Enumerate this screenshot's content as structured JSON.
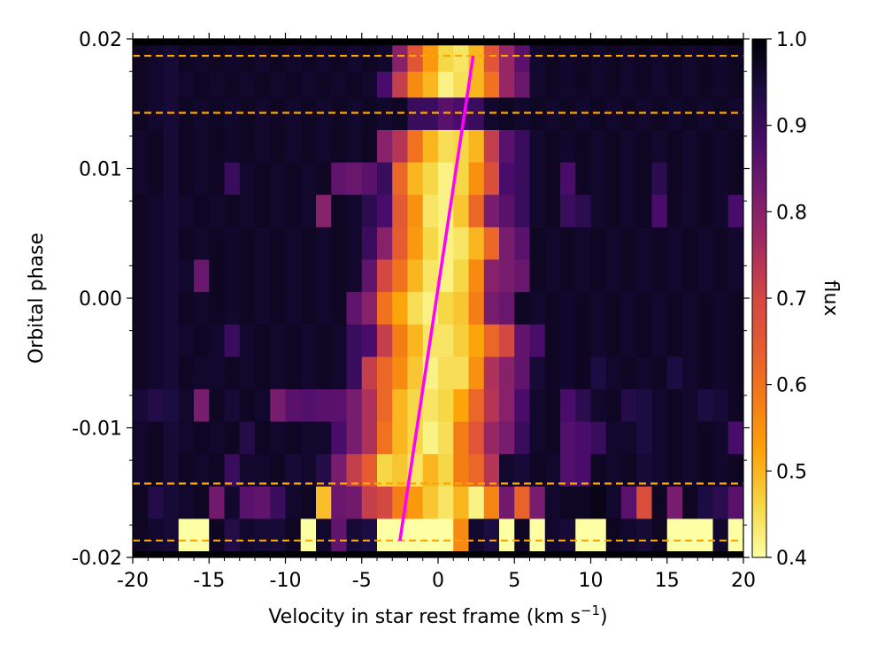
{
  "chart_data": {
    "type": "heatmap",
    "title": "",
    "xlabel": "Velocity in star rest frame (km s",
    "xlabel_sup": "−1",
    "xlabel_end": ")",
    "ylabel": "Orbital phase",
    "xlim": [
      -20,
      20
    ],
    "ylim": [
      -0.02,
      0.02
    ],
    "x_ticks": [
      -20,
      -15,
      -10,
      -5,
      0,
      5,
      10,
      15,
      20
    ],
    "x_tick_labels": [
      "-20",
      "-15",
      "-10",
      "-5",
      "0",
      "5",
      "10",
      "15",
      "20"
    ],
    "y_ticks": [
      -0.02,
      -0.01,
      0.0,
      0.01,
      0.02
    ],
    "y_tick_labels": [
      "-0.02",
      "-0.01",
      "0.00",
      "0.01",
      "0.02"
    ],
    "colorbar": {
      "label": "flux",
      "range": [
        0.4,
        1.0
      ],
      "ticks": [
        0.4,
        0.5,
        0.6,
        0.7,
        0.8,
        0.9,
        1.0
      ],
      "tick_labels": [
        "0.4",
        "0.5",
        "0.6",
        "0.7",
        "0.8",
        "0.9",
        "1.0"
      ],
      "colormap": "inferno"
    },
    "velocity_bin_edges": [
      -20,
      -19,
      -18,
      -17,
      -16,
      -15,
      -14,
      -13,
      -12,
      -11,
      -10,
      -9,
      -8,
      -7,
      -6,
      -5,
      -4,
      -3,
      -2,
      -1,
      0,
      1,
      2,
      3,
      4,
      5,
      6,
      7,
      8,
      9,
      10,
      11,
      12,
      13,
      14,
      15,
      16,
      17,
      18,
      19,
      20
    ],
    "phase_bin_edges": [
      -0.0195,
      -0.017,
      -0.0145,
      -0.012,
      -0.0095,
      -0.007,
      -0.0045,
      -0.002,
      0.0005,
      0.003,
      0.0055,
      0.008,
      0.0105,
      0.013,
      0.0155,
      0.0175,
      0.0195
    ],
    "flux": [
      [
        0.97,
        0.96,
        0.95,
        0.4,
        0.4,
        0.97,
        0.93,
        0.96,
        0.95,
        0.95,
        0.97,
        0.4,
        0.96,
        0.85,
        0.95,
        0.94,
        0.4,
        0.4,
        0.4,
        0.4,
        0.4,
        0.56,
        0.96,
        0.94,
        0.4,
        0.97,
        0.4,
        0.96,
        0.95,
        0.4,
        0.4,
        0.97,
        0.96,
        0.95,
        0.97,
        0.4,
        0.4,
        0.4,
        0.96,
        0.4
      ],
      [
        0.97,
        0.93,
        0.95,
        0.96,
        0.97,
        0.83,
        0.96,
        0.86,
        0.85,
        0.9,
        0.96,
        0.97,
        0.49,
        0.84,
        0.83,
        0.72,
        0.7,
        0.58,
        0.54,
        0.48,
        0.44,
        0.5,
        0.42,
        0.57,
        0.83,
        0.63,
        0.82,
        0.96,
        0.97,
        0.97,
        0.98,
        0.96,
        0.86,
        0.68,
        0.97,
        0.82,
        0.97,
        0.94,
        0.92,
        0.86
      ],
      [
        0.96,
        0.97,
        0.95,
        0.97,
        0.96,
        0.97,
        0.9,
        0.96,
        0.96,
        0.97,
        0.95,
        0.96,
        0.93,
        0.82,
        0.72,
        0.64,
        0.46,
        0.48,
        0.44,
        0.5,
        0.46,
        0.58,
        0.62,
        0.74,
        0.96,
        0.95,
        0.97,
        0.96,
        0.87,
        0.88,
        0.97,
        0.96,
        0.97,
        0.95,
        0.96,
        0.97,
        0.96,
        0.97,
        0.96,
        0.97
      ],
      [
        0.96,
        0.97,
        0.95,
        0.96,
        0.97,
        0.96,
        0.97,
        0.93,
        0.97,
        0.96,
        0.97,
        0.96,
        0.96,
        0.88,
        0.82,
        0.75,
        0.6,
        0.5,
        0.46,
        0.42,
        0.45,
        0.58,
        0.66,
        0.78,
        0.82,
        0.9,
        0.96,
        0.97,
        0.87,
        0.88,
        0.9,
        0.96,
        0.96,
        0.94,
        0.96,
        0.97,
        0.96,
        0.97,
        0.96,
        0.88
      ],
      [
        0.95,
        0.93,
        0.94,
        0.96,
        0.82,
        0.97,
        0.95,
        0.97,
        0.96,
        0.82,
        0.86,
        0.87,
        0.86,
        0.86,
        0.82,
        0.75,
        0.62,
        0.5,
        0.46,
        0.44,
        0.46,
        0.52,
        0.62,
        0.74,
        0.8,
        0.88,
        0.96,
        0.97,
        0.88,
        0.92,
        0.96,
        0.97,
        0.93,
        0.94,
        0.96,
        0.97,
        0.96,
        0.94,
        0.95,
        0.97
      ],
      [
        0.97,
        0.96,
        0.95,
        0.97,
        0.96,
        0.96,
        0.97,
        0.96,
        0.97,
        0.96,
        0.97,
        0.96,
        0.97,
        0.96,
        0.9,
        0.72,
        0.62,
        0.56,
        0.48,
        0.42,
        0.45,
        0.45,
        0.55,
        0.75,
        0.8,
        0.85,
        0.95,
        0.97,
        0.96,
        0.97,
        0.94,
        0.96,
        0.97,
        0.96,
        0.97,
        0.94,
        0.96,
        0.97,
        0.96,
        0.97
      ],
      [
        0.97,
        0.96,
        0.95,
        0.96,
        0.97,
        0.96,
        0.9,
        0.96,
        0.97,
        0.96,
        0.97,
        0.96,
        0.97,
        0.96,
        0.9,
        0.88,
        0.72,
        0.58,
        0.5,
        0.44,
        0.44,
        0.47,
        0.52,
        0.62,
        0.7,
        0.85,
        0.88,
        0.97,
        0.96,
        0.97,
        0.96,
        0.97,
        0.96,
        0.97,
        0.96,
        0.97,
        0.96,
        0.97,
        0.96,
        0.97
      ],
      [
        0.97,
        0.96,
        0.95,
        0.97,
        0.96,
        0.97,
        0.96,
        0.97,
        0.96,
        0.97,
        0.96,
        0.97,
        0.96,
        0.97,
        0.85,
        0.8,
        0.6,
        0.52,
        0.45,
        0.42,
        0.46,
        0.48,
        0.58,
        0.82,
        0.84,
        0.97,
        0.96,
        0.97,
        0.96,
        0.97,
        0.96,
        0.97,
        0.96,
        0.97,
        0.96,
        0.97,
        0.96,
        0.97,
        0.96,
        0.97
      ],
      [
        0.97,
        0.96,
        0.95,
        0.96,
        0.84,
        0.97,
        0.96,
        0.97,
        0.96,
        0.97,
        0.96,
        0.97,
        0.96,
        0.97,
        0.96,
        0.85,
        0.7,
        0.6,
        0.5,
        0.44,
        0.42,
        0.46,
        0.56,
        0.8,
        0.82,
        0.84,
        0.97,
        0.96,
        0.97,
        0.96,
        0.97,
        0.96,
        0.97,
        0.96,
        0.97,
        0.96,
        0.97,
        0.96,
        0.97,
        0.96
      ],
      [
        0.97,
        0.96,
        0.95,
        0.97,
        0.96,
        0.97,
        0.96,
        0.97,
        0.96,
        0.97,
        0.96,
        0.97,
        0.96,
        0.97,
        0.96,
        0.9,
        0.8,
        0.64,
        0.54,
        0.46,
        0.42,
        0.44,
        0.5,
        0.62,
        0.82,
        0.86,
        0.97,
        0.96,
        0.97,
        0.96,
        0.97,
        0.96,
        0.97,
        0.96,
        0.97,
        0.96,
        0.97,
        0.96,
        0.97,
        0.96
      ],
      [
        0.97,
        0.96,
        0.95,
        0.96,
        0.97,
        0.96,
        0.97,
        0.96,
        0.97,
        0.96,
        0.97,
        0.96,
        0.8,
        0.97,
        0.96,
        0.92,
        0.88,
        0.65,
        0.55,
        0.44,
        0.42,
        0.48,
        0.62,
        0.82,
        0.86,
        0.9,
        0.96,
        0.97,
        0.9,
        0.92,
        0.96,
        0.97,
        0.96,
        0.97,
        0.88,
        0.97,
        0.96,
        0.97,
        0.96,
        0.88
      ],
      [
        0.96,
        0.97,
        0.95,
        0.97,
        0.96,
        0.97,
        0.9,
        0.96,
        0.97,
        0.96,
        0.97,
        0.96,
        0.97,
        0.85,
        0.84,
        0.86,
        0.9,
        0.62,
        0.5,
        0.46,
        0.42,
        0.46,
        0.55,
        0.68,
        0.88,
        0.9,
        0.96,
        0.97,
        0.88,
        0.97,
        0.96,
        0.97,
        0.96,
        0.97,
        0.92,
        0.97,
        0.96,
        0.97,
        0.96,
        0.97
      ],
      [
        0.96,
        0.97,
        0.95,
        0.97,
        0.96,
        0.97,
        0.96,
        0.97,
        0.96,
        0.97,
        0.96,
        0.97,
        0.96,
        0.97,
        0.96,
        0.97,
        0.8,
        0.74,
        0.6,
        0.5,
        0.45,
        0.46,
        0.5,
        0.72,
        0.86,
        0.9,
        0.96,
        0.97,
        0.96,
        0.97,
        0.96,
        0.97,
        0.96,
        0.97,
        0.96,
        0.97,
        0.96,
        0.97,
        0.96,
        0.97
      ],
      [
        0.97,
        0.96,
        0.95,
        0.97,
        0.96,
        0.97,
        0.96,
        0.97,
        0.96,
        0.97,
        0.96,
        0.97,
        0.96,
        0.97,
        0.96,
        0.97,
        0.96,
        0.97,
        0.9,
        0.9,
        0.86,
        0.88,
        0.9,
        0.96,
        0.97,
        0.96,
        0.97,
        0.96,
        0.97,
        0.96,
        0.97,
        0.96,
        0.97,
        0.96,
        0.97,
        0.96,
        0.97,
        0.96,
        0.97,
        0.96
      ],
      [
        0.97,
        0.96,
        0.95,
        0.96,
        0.97,
        0.96,
        0.97,
        0.96,
        0.97,
        0.96,
        0.97,
        0.96,
        0.97,
        0.96,
        0.97,
        0.96,
        0.88,
        0.72,
        0.56,
        0.5,
        0.42,
        0.45,
        0.5,
        0.6,
        0.78,
        0.84,
        0.96,
        0.97,
        0.96,
        0.97,
        0.96,
        0.97,
        0.96,
        0.97,
        0.96,
        0.97,
        0.96,
        0.97,
        0.96,
        0.97
      ],
      [
        0.97,
        0.96,
        0.95,
        0.97,
        0.96,
        0.97,
        0.96,
        0.97,
        0.96,
        0.97,
        0.96,
        0.97,
        0.96,
        0.97,
        0.96,
        0.97,
        0.96,
        0.8,
        0.66,
        0.54,
        0.46,
        0.44,
        0.5,
        0.66,
        0.78,
        0.86,
        0.96,
        0.97,
        0.96,
        0.97,
        0.96,
        0.97,
        0.96,
        0.97,
        0.96,
        0.97,
        0.96,
        0.97,
        0.96,
        0.97
      ]
    ],
    "model_track": {
      "color": "#ff00ff",
      "x": [
        -2.5,
        2.3
      ],
      "y": [
        -0.0187,
        0.0187
      ]
    },
    "dashed_lines": {
      "color": "#ffa500",
      "y": [
        -0.0187,
        -0.0143,
        0.0143,
        0.0187
      ]
    }
  }
}
